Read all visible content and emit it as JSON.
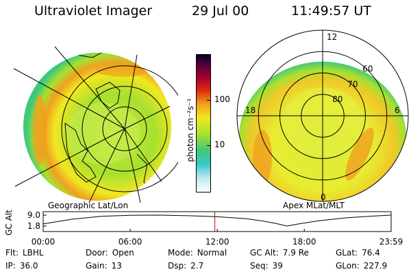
{
  "header": {
    "instrument": "Ultraviolet Imager",
    "date": "29 Jul 00",
    "time": "11:49:57 UT"
  },
  "colors": {
    "background": "#ffffff",
    "grid_lines": "#000000",
    "time_marker": "#cc0000",
    "scale": [
      "#ffffff",
      "#bfe8f0",
      "#38c8c8",
      "#40c878",
      "#a8e030",
      "#f0e820",
      "#f0a020",
      "#e02810",
      "#a00030",
      "#500040",
      "#000020"
    ]
  },
  "left_panel": {
    "label": "Geographic Lat/Lon",
    "icons": [
      "earth-globe-image",
      "coastline-map-overlay",
      "lat-lon-grid"
    ]
  },
  "colorbar": {
    "unit_label": "photon cm⁻²s⁻¹",
    "ticks": [
      {
        "label": "100",
        "value": 100
      },
      {
        "label": "10",
        "value": 10
      }
    ],
    "scale": "log"
  },
  "right_panel": {
    "label": "Apex MLat/MLT",
    "mlt_labels": [
      {
        "label": "12",
        "mlt": 12
      },
      {
        "label": "18",
        "mlt": 18
      },
      {
        "label": "6",
        "mlt": 6
      },
      {
        "label": "0",
        "mlt": 0
      }
    ],
    "lat_labels": [
      {
        "label": "60",
        "lat": 60
      },
      {
        "label": "70",
        "lat": 70
      },
      {
        "label": "80",
        "lat": 80
      }
    ]
  },
  "chart_data": {
    "type": "line",
    "ylabel": "GC Alt",
    "ytick_labels": [
      "9.0",
      "1.8"
    ],
    "ylim": [
      1.8,
      9.0
    ],
    "xtick_labels": [
      "00:00",
      "06:00",
      "12:00",
      "18:00",
      "23:59"
    ],
    "xlim_hours": [
      0,
      23.983
    ],
    "series": [
      {
        "x_hours": [
          0,
          2,
          4,
          6,
          8,
          10,
          12,
          14,
          15,
          16,
          16.8,
          17.5,
          19,
          21,
          23,
          23.983
        ],
        "values": [
          3.2,
          6.3,
          8.2,
          8.9,
          9.0,
          8.6,
          7.9,
          6.6,
          5.3,
          3.6,
          1.8,
          3.0,
          5.3,
          7.3,
          8.5,
          9.0
        ]
      }
    ],
    "current_time_hours": 11.83
  },
  "status": {
    "flt": {
      "label": "Flt:",
      "value": "LBHL"
    },
    "ip": {
      "label": "IP:",
      "value": "36.0"
    },
    "door": {
      "label": "Door:",
      "value": "Open"
    },
    "gain": {
      "label": "Gain:",
      "value": "13"
    },
    "mode": {
      "label": "Mode:",
      "value": "Normal"
    },
    "dsp": {
      "label": "Dsp:",
      "value": "2.7"
    },
    "gcalt": {
      "label": "GC Alt:",
      "value": "7.9 Re"
    },
    "seq": {
      "label": "Seq:",
      "value": "39"
    },
    "glat": {
      "label": "GLat:",
      "value": "76.4"
    },
    "glon": {
      "label": "GLon:",
      "value": "227.9"
    }
  }
}
